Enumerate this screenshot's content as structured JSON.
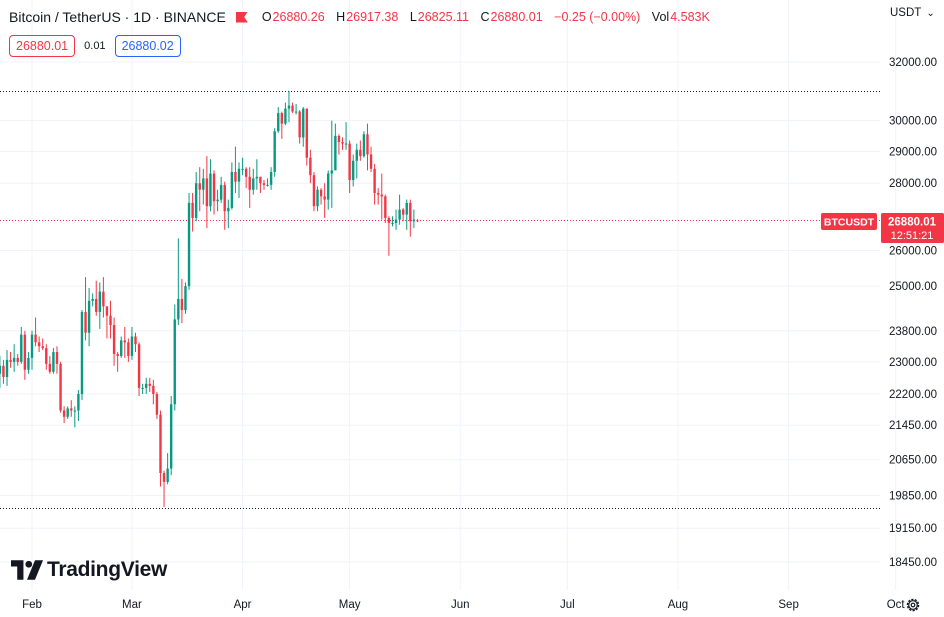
{
  "header": {
    "symbol_title": "Bitcoin / TetherUS · 1D · BINANCE",
    "ohlc": {
      "o_label": "O",
      "o_value": "26880.26",
      "h_label": "H",
      "h_value": "26917.38",
      "l_label": "L",
      "l_value": "26825.11",
      "c_label": "C",
      "c_value": "26880.01",
      "change": "−0.25 (−0.00%)",
      "vol_label": "Vol",
      "vol_value": "4.583K"
    },
    "sell_price": "26880.01",
    "spread": "0.01",
    "buy_price": "26880.02"
  },
  "price_axis": {
    "currency": "USDT",
    "currency_caret": "⌄",
    "symbol_tag": "BTCUSDT",
    "last_price": "26880.01",
    "countdown": "12:51:21"
  },
  "logo": {
    "text": "TradingView"
  },
  "colors": {
    "up": "#089981",
    "down": "#f23645",
    "tag": "#f23645",
    "grid": "#f0f3fa"
  },
  "chart_data": {
    "type": "candlestick",
    "title": "Bitcoin / TetherUS · 1D · BINANCE",
    "y_scale": "log",
    "ylim": [
      18000,
      33200
    ],
    "y_ticks": [
      32000,
      30000,
      29000,
      28000,
      26000,
      25000,
      23800,
      23000,
      22200,
      21450,
      20650,
      19850,
      19150,
      18450
    ],
    "y_tick_labels": [
      "32000.00",
      "30000.00",
      "29000.00",
      "28000.00",
      "26000.00",
      "25000.00",
      "23800.00",
      "23000.00",
      "22200.00",
      "21450.00",
      "20650.00",
      "19850.00",
      "19150.00",
      "18450.00"
    ],
    "x_ticks": [
      {
        "label": "Feb",
        "date": "2023-02-01"
      },
      {
        "label": "Mar",
        "date": "2023-03-01"
      },
      {
        "label": "Apr",
        "date": "2023-04-01"
      },
      {
        "label": "May",
        "date": "2023-05-01"
      },
      {
        "label": "Jun",
        "date": "2023-06-01"
      },
      {
        "label": "Jul",
        "date": "2023-07-01"
      },
      {
        "label": "Aug",
        "date": "2023-08-01"
      },
      {
        "label": "Sep",
        "date": "2023-09-01"
      },
      {
        "label": "Oct",
        "date": "2023-10-01"
      }
    ],
    "xlim": [
      "2023-01-23",
      "2023-10-07"
    ],
    "reference_lines": [
      {
        "price": 31000,
        "style": "dotted",
        "color": "#131722"
      },
      {
        "price": 19570,
        "style": "dotted",
        "color": "#131722"
      },
      {
        "price": 26880.01,
        "style": "dotted",
        "color": "#f23645"
      }
    ],
    "candles": [
      {
        "date": "2023-01-23",
        "o": 22700,
        "h": 23150,
        "l": 22350,
        "c": 22900
      },
      {
        "date": "2023-01-24",
        "o": 22900,
        "h": 23050,
        "l": 22450,
        "c": 22620
      },
      {
        "date": "2023-01-25",
        "o": 22620,
        "h": 23300,
        "l": 22400,
        "c": 23050
      },
      {
        "date": "2023-01-26",
        "o": 23050,
        "h": 23250,
        "l": 22850,
        "c": 23000
      },
      {
        "date": "2023-01-27",
        "o": 23000,
        "h": 23450,
        "l": 22750,
        "c": 23100
      },
      {
        "date": "2023-01-28",
        "o": 23100,
        "h": 23200,
        "l": 22900,
        "c": 23000
      },
      {
        "date": "2023-01-29",
        "o": 23000,
        "h": 23900,
        "l": 22950,
        "c": 23700
      },
      {
        "date": "2023-01-30",
        "o": 23700,
        "h": 23800,
        "l": 22550,
        "c": 22800
      },
      {
        "date": "2023-01-31",
        "o": 22800,
        "h": 23250,
        "l": 22700,
        "c": 23100
      },
      {
        "date": "2023-02-01",
        "o": 23100,
        "h": 23800,
        "l": 22800,
        "c": 23700
      },
      {
        "date": "2023-02-02",
        "o": 23700,
        "h": 24150,
        "l": 23400,
        "c": 23500
      },
      {
        "date": "2023-02-03",
        "o": 23500,
        "h": 23650,
        "l": 23250,
        "c": 23400
      },
      {
        "date": "2023-02-04",
        "o": 23400,
        "h": 23600,
        "l": 23300,
        "c": 23350
      },
      {
        "date": "2023-02-05",
        "o": 23350,
        "h": 23450,
        "l": 22800,
        "c": 22950
      },
      {
        "date": "2023-02-06",
        "o": 22950,
        "h": 23150,
        "l": 22700,
        "c": 22750
      },
      {
        "date": "2023-02-07",
        "o": 22750,
        "h": 23350,
        "l": 22700,
        "c": 23250
      },
      {
        "date": "2023-02-08",
        "o": 23250,
        "h": 23400,
        "l": 22700,
        "c": 22950
      },
      {
        "date": "2023-02-09",
        "o": 22950,
        "h": 23000,
        "l": 21750,
        "c": 21800
      },
      {
        "date": "2023-02-10",
        "o": 21800,
        "h": 21900,
        "l": 21500,
        "c": 21650
      },
      {
        "date": "2023-02-11",
        "o": 21650,
        "h": 21900,
        "l": 21600,
        "c": 21850
      },
      {
        "date": "2023-02-12",
        "o": 21850,
        "h": 22050,
        "l": 21650,
        "c": 21800
      },
      {
        "date": "2023-02-13",
        "o": 21800,
        "h": 21900,
        "l": 21400,
        "c": 21800
      },
      {
        "date": "2023-02-14",
        "o": 21800,
        "h": 22300,
        "l": 21550,
        "c": 22200
      },
      {
        "date": "2023-02-15",
        "o": 22200,
        "h": 24350,
        "l": 22050,
        "c": 24300
      },
      {
        "date": "2023-02-16",
        "o": 24300,
        "h": 25250,
        "l": 23550,
        "c": 23750
      },
      {
        "date": "2023-02-17",
        "o": 23750,
        "h": 24950,
        "l": 23400,
        "c": 24600
      },
      {
        "date": "2023-02-18",
        "o": 24600,
        "h": 24800,
        "l": 24450,
        "c": 24650
      },
      {
        "date": "2023-02-19",
        "o": 24650,
        "h": 25150,
        "l": 24200,
        "c": 24300
      },
      {
        "date": "2023-02-20",
        "o": 24300,
        "h": 25100,
        "l": 23850,
        "c": 24850
      },
      {
        "date": "2023-02-21",
        "o": 24850,
        "h": 25250,
        "l": 24150,
        "c": 24450
      },
      {
        "date": "2023-02-22",
        "o": 24450,
        "h": 24450,
        "l": 23600,
        "c": 24200
      },
      {
        "date": "2023-02-23",
        "o": 24200,
        "h": 24600,
        "l": 23600,
        "c": 23950
      },
      {
        "date": "2023-02-24",
        "o": 23950,
        "h": 24150,
        "l": 22900,
        "c": 23200
      },
      {
        "date": "2023-02-25",
        "o": 23200,
        "h": 23250,
        "l": 22750,
        "c": 23150
      },
      {
        "date": "2023-02-26",
        "o": 23150,
        "h": 23650,
        "l": 23100,
        "c": 23550
      },
      {
        "date": "2023-02-27",
        "o": 23550,
        "h": 23900,
        "l": 23100,
        "c": 23500
      },
      {
        "date": "2023-02-28",
        "o": 23500,
        "h": 23600,
        "l": 23000,
        "c": 23150
      },
      {
        "date": "2023-03-01",
        "o": 23150,
        "h": 23900,
        "l": 23050,
        "c": 23650
      },
      {
        "date": "2023-03-02",
        "o": 23650,
        "h": 23750,
        "l": 23250,
        "c": 23450
      },
      {
        "date": "2023-03-03",
        "o": 23450,
        "h": 23500,
        "l": 22150,
        "c": 22350
      },
      {
        "date": "2023-03-04",
        "o": 22350,
        "h": 22450,
        "l": 22200,
        "c": 22350
      },
      {
        "date": "2023-03-05",
        "o": 22350,
        "h": 22600,
        "l": 22200,
        "c": 22450
      },
      {
        "date": "2023-03-06",
        "o": 22450,
        "h": 22600,
        "l": 22250,
        "c": 22400
      },
      {
        "date": "2023-03-07",
        "o": 22400,
        "h": 22550,
        "l": 21950,
        "c": 22200
      },
      {
        "date": "2023-03-08",
        "o": 22200,
        "h": 22250,
        "l": 21600,
        "c": 21700
      },
      {
        "date": "2023-03-09",
        "o": 21700,
        "h": 21800,
        "l": 20050,
        "c": 20350
      },
      {
        "date": "2023-03-10",
        "o": 20350,
        "h": 20400,
        "l": 19600,
        "c": 20150
      },
      {
        "date": "2023-03-11",
        "o": 20150,
        "h": 20800,
        "l": 20100,
        "c": 20450
      },
      {
        "date": "2023-03-12",
        "o": 20450,
        "h": 22150,
        "l": 20300,
        "c": 21950
      },
      {
        "date": "2023-03-13",
        "o": 21950,
        "h": 24500,
        "l": 21800,
        "c": 24100
      },
      {
        "date": "2023-03-14",
        "o": 24100,
        "h": 26350,
        "l": 23950,
        "c": 24650
      },
      {
        "date": "2023-03-15",
        "o": 24650,
        "h": 25200,
        "l": 24000,
        "c": 24350
      },
      {
        "date": "2023-03-16",
        "o": 24350,
        "h": 25100,
        "l": 24250,
        "c": 25000
      },
      {
        "date": "2023-03-17",
        "o": 25000,
        "h": 27700,
        "l": 24900,
        "c": 27400
      },
      {
        "date": "2023-03-18",
        "o": 27400,
        "h": 27700,
        "l": 26550,
        "c": 26950
      },
      {
        "date": "2023-03-19",
        "o": 26950,
        "h": 28350,
        "l": 26850,
        "c": 28000
      },
      {
        "date": "2023-03-20",
        "o": 28000,
        "h": 28500,
        "l": 27150,
        "c": 27800
      },
      {
        "date": "2023-03-21",
        "o": 27800,
        "h": 28450,
        "l": 27350,
        "c": 28150
      },
      {
        "date": "2023-03-22",
        "o": 28150,
        "h": 28850,
        "l": 26650,
        "c": 27300
      },
      {
        "date": "2023-03-23",
        "o": 27300,
        "h": 28750,
        "l": 27150,
        "c": 28300
      },
      {
        "date": "2023-03-24",
        "o": 28300,
        "h": 28400,
        "l": 27050,
        "c": 27450
      },
      {
        "date": "2023-03-25",
        "o": 27450,
        "h": 27800,
        "l": 27150,
        "c": 27500
      },
      {
        "date": "2023-03-26",
        "o": 27500,
        "h": 28200,
        "l": 27400,
        "c": 27950
      },
      {
        "date": "2023-03-27",
        "o": 27950,
        "h": 28050,
        "l": 26600,
        "c": 27150
      },
      {
        "date": "2023-03-28",
        "o": 27150,
        "h": 27500,
        "l": 26650,
        "c": 27250
      },
      {
        "date": "2023-03-29",
        "o": 27250,
        "h": 28650,
        "l": 27200,
        "c": 28350
      },
      {
        "date": "2023-03-30",
        "o": 28350,
        "h": 29150,
        "l": 27700,
        "c": 28050
      },
      {
        "date": "2023-03-31",
        "o": 28050,
        "h": 28650,
        "l": 27550,
        "c": 28450
      },
      {
        "date": "2023-04-01",
        "o": 28450,
        "h": 28800,
        "l": 28250,
        "c": 28450
      },
      {
        "date": "2023-04-02",
        "o": 28450,
        "h": 28500,
        "l": 27850,
        "c": 28200
      },
      {
        "date": "2023-04-03",
        "o": 28200,
        "h": 28500,
        "l": 27250,
        "c": 27800
      },
      {
        "date": "2023-04-04",
        "o": 27800,
        "h": 28450,
        "l": 27650,
        "c": 28150
      },
      {
        "date": "2023-04-05",
        "o": 28150,
        "h": 28750,
        "l": 27800,
        "c": 28200
      },
      {
        "date": "2023-04-06",
        "o": 28200,
        "h": 28200,
        "l": 27700,
        "c": 28000
      },
      {
        "date": "2023-04-07",
        "o": 28000,
        "h": 28100,
        "l": 27800,
        "c": 27950
      },
      {
        "date": "2023-04-08",
        "o": 27950,
        "h": 28150,
        "l": 27900,
        "c": 27950
      },
      {
        "date": "2023-04-09",
        "o": 27950,
        "h": 28500,
        "l": 27800,
        "c": 28350
      },
      {
        "date": "2023-04-10",
        "o": 28350,
        "h": 29750,
        "l": 28200,
        "c": 29650
      },
      {
        "date": "2023-04-11",
        "o": 29650,
        "h": 30450,
        "l": 29600,
        "c": 30250
      },
      {
        "date": "2023-04-12",
        "o": 30250,
        "h": 30300,
        "l": 29400,
        "c": 29900
      },
      {
        "date": "2023-04-13",
        "o": 29900,
        "h": 30600,
        "l": 29850,
        "c": 30400
      },
      {
        "date": "2023-04-14",
        "o": 30400,
        "h": 31000,
        "l": 29950,
        "c": 30500
      },
      {
        "date": "2023-04-15",
        "o": 30500,
        "h": 30600,
        "l": 30250,
        "c": 30300
      },
      {
        "date": "2023-04-16",
        "o": 30300,
        "h": 30550,
        "l": 30200,
        "c": 30300
      },
      {
        "date": "2023-04-17",
        "o": 30300,
        "h": 30350,
        "l": 29250,
        "c": 29450
      },
      {
        "date": "2023-04-18",
        "o": 29450,
        "h": 30450,
        "l": 29150,
        "c": 30400
      },
      {
        "date": "2023-04-19",
        "o": 30400,
        "h": 30400,
        "l": 28550,
        "c": 28800
      },
      {
        "date": "2023-04-20",
        "o": 28800,
        "h": 29050,
        "l": 28000,
        "c": 28250
      },
      {
        "date": "2023-04-21",
        "o": 28250,
        "h": 28350,
        "l": 27150,
        "c": 27300
      },
      {
        "date": "2023-04-22",
        "o": 27300,
        "h": 27900,
        "l": 27150,
        "c": 27800
      },
      {
        "date": "2023-04-23",
        "o": 27800,
        "h": 27850,
        "l": 27350,
        "c": 27600
      },
      {
        "date": "2023-04-24",
        "o": 27600,
        "h": 28000,
        "l": 26950,
        "c": 27500
      },
      {
        "date": "2023-04-25",
        "o": 27500,
        "h": 28400,
        "l": 27200,
        "c": 28300
      },
      {
        "date": "2023-04-26",
        "o": 28300,
        "h": 30000,
        "l": 27250,
        "c": 28400
      },
      {
        "date": "2023-04-27",
        "o": 28400,
        "h": 29900,
        "l": 28400,
        "c": 29500
      },
      {
        "date": "2023-04-28",
        "o": 29500,
        "h": 29550,
        "l": 28900,
        "c": 29300
      },
      {
        "date": "2023-04-29",
        "o": 29300,
        "h": 29450,
        "l": 29050,
        "c": 29250
      },
      {
        "date": "2023-04-30",
        "o": 29250,
        "h": 29950,
        "l": 29050,
        "c": 29250
      },
      {
        "date": "2023-05-01",
        "o": 29250,
        "h": 29350,
        "l": 27700,
        "c": 28100
      },
      {
        "date": "2023-05-02",
        "o": 28100,
        "h": 28900,
        "l": 27900,
        "c": 28700
      },
      {
        "date": "2023-05-03",
        "o": 28700,
        "h": 29250,
        "l": 28150,
        "c": 29050
      },
      {
        "date": "2023-05-04",
        "o": 29050,
        "h": 29350,
        "l": 28700,
        "c": 28850
      },
      {
        "date": "2023-05-05",
        "o": 28850,
        "h": 29650,
        "l": 28800,
        "c": 29550
      },
      {
        "date": "2023-05-06",
        "o": 29550,
        "h": 29900,
        "l": 28400,
        "c": 28900
      },
      {
        "date": "2023-05-07",
        "o": 28900,
        "h": 29150,
        "l": 28350,
        "c": 28450
      },
      {
        "date": "2023-05-08",
        "o": 28450,
        "h": 28600,
        "l": 27350,
        "c": 27700
      },
      {
        "date": "2023-05-09",
        "o": 27700,
        "h": 27850,
        "l": 27350,
        "c": 27650
      },
      {
        "date": "2023-05-10",
        "o": 27650,
        "h": 28300,
        "l": 26900,
        "c": 27600
      },
      {
        "date": "2023-05-11",
        "o": 27600,
        "h": 27650,
        "l": 26800,
        "c": 26950
      },
      {
        "date": "2023-05-12",
        "o": 26950,
        "h": 27000,
        "l": 25850,
        "c": 26800
      },
      {
        "date": "2023-05-13",
        "o": 26800,
        "h": 27000,
        "l": 26700,
        "c": 26800
      },
      {
        "date": "2023-05-14",
        "o": 26800,
        "h": 27200,
        "l": 26600,
        "c": 26900
      },
      {
        "date": "2023-05-15",
        "o": 26900,
        "h": 27650,
        "l": 26750,
        "c": 27200
      },
      {
        "date": "2023-05-16",
        "o": 27200,
        "h": 27250,
        "l": 26850,
        "c": 27050
      },
      {
        "date": "2023-05-17",
        "o": 27050,
        "h": 27500,
        "l": 26600,
        "c": 27400
      },
      {
        "date": "2023-05-18",
        "o": 27400,
        "h": 27500,
        "l": 26400,
        "c": 26850
      },
      {
        "date": "2023-05-19",
        "o": 26850,
        "h": 27200,
        "l": 26650,
        "c": 26900
      },
      {
        "date": "2023-05-20",
        "o": 26880.26,
        "h": 26917.38,
        "l": 26825.11,
        "c": 26880.01
      }
    ]
  }
}
